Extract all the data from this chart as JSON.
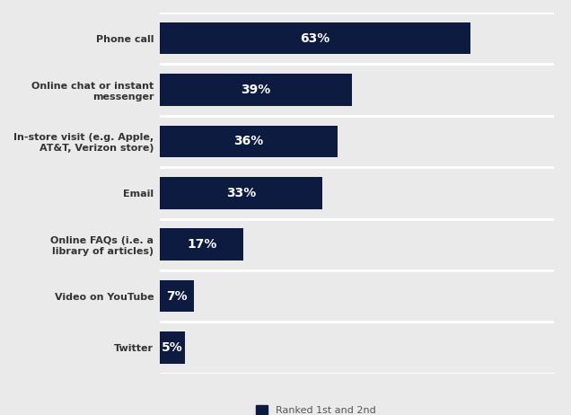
{
  "categories": [
    "Twitter",
    "Video on YouTube",
    "Online FAQs (i.e. a\nlibrary of articles)",
    "Email",
    "In-store visit (e.g. Apple,\nAT&T, Verizon store)",
    "Online chat or instant\nmessenger",
    "Phone call"
  ],
  "values": [
    5,
    7,
    17,
    33,
    36,
    39,
    63
  ],
  "labels": [
    "5%",
    "7%",
    "17%",
    "33%",
    "36%",
    "39%",
    "63%"
  ],
  "bar_color": "#0d1b40",
  "background_color": "#eaeaea",
  "text_color": "#ffffff",
  "legend_label": "Ranked 1st and 2nd",
  "bar_height": 0.62,
  "xlim": 80,
  "label_fontsize": 10,
  "cat_fontsize": 8
}
